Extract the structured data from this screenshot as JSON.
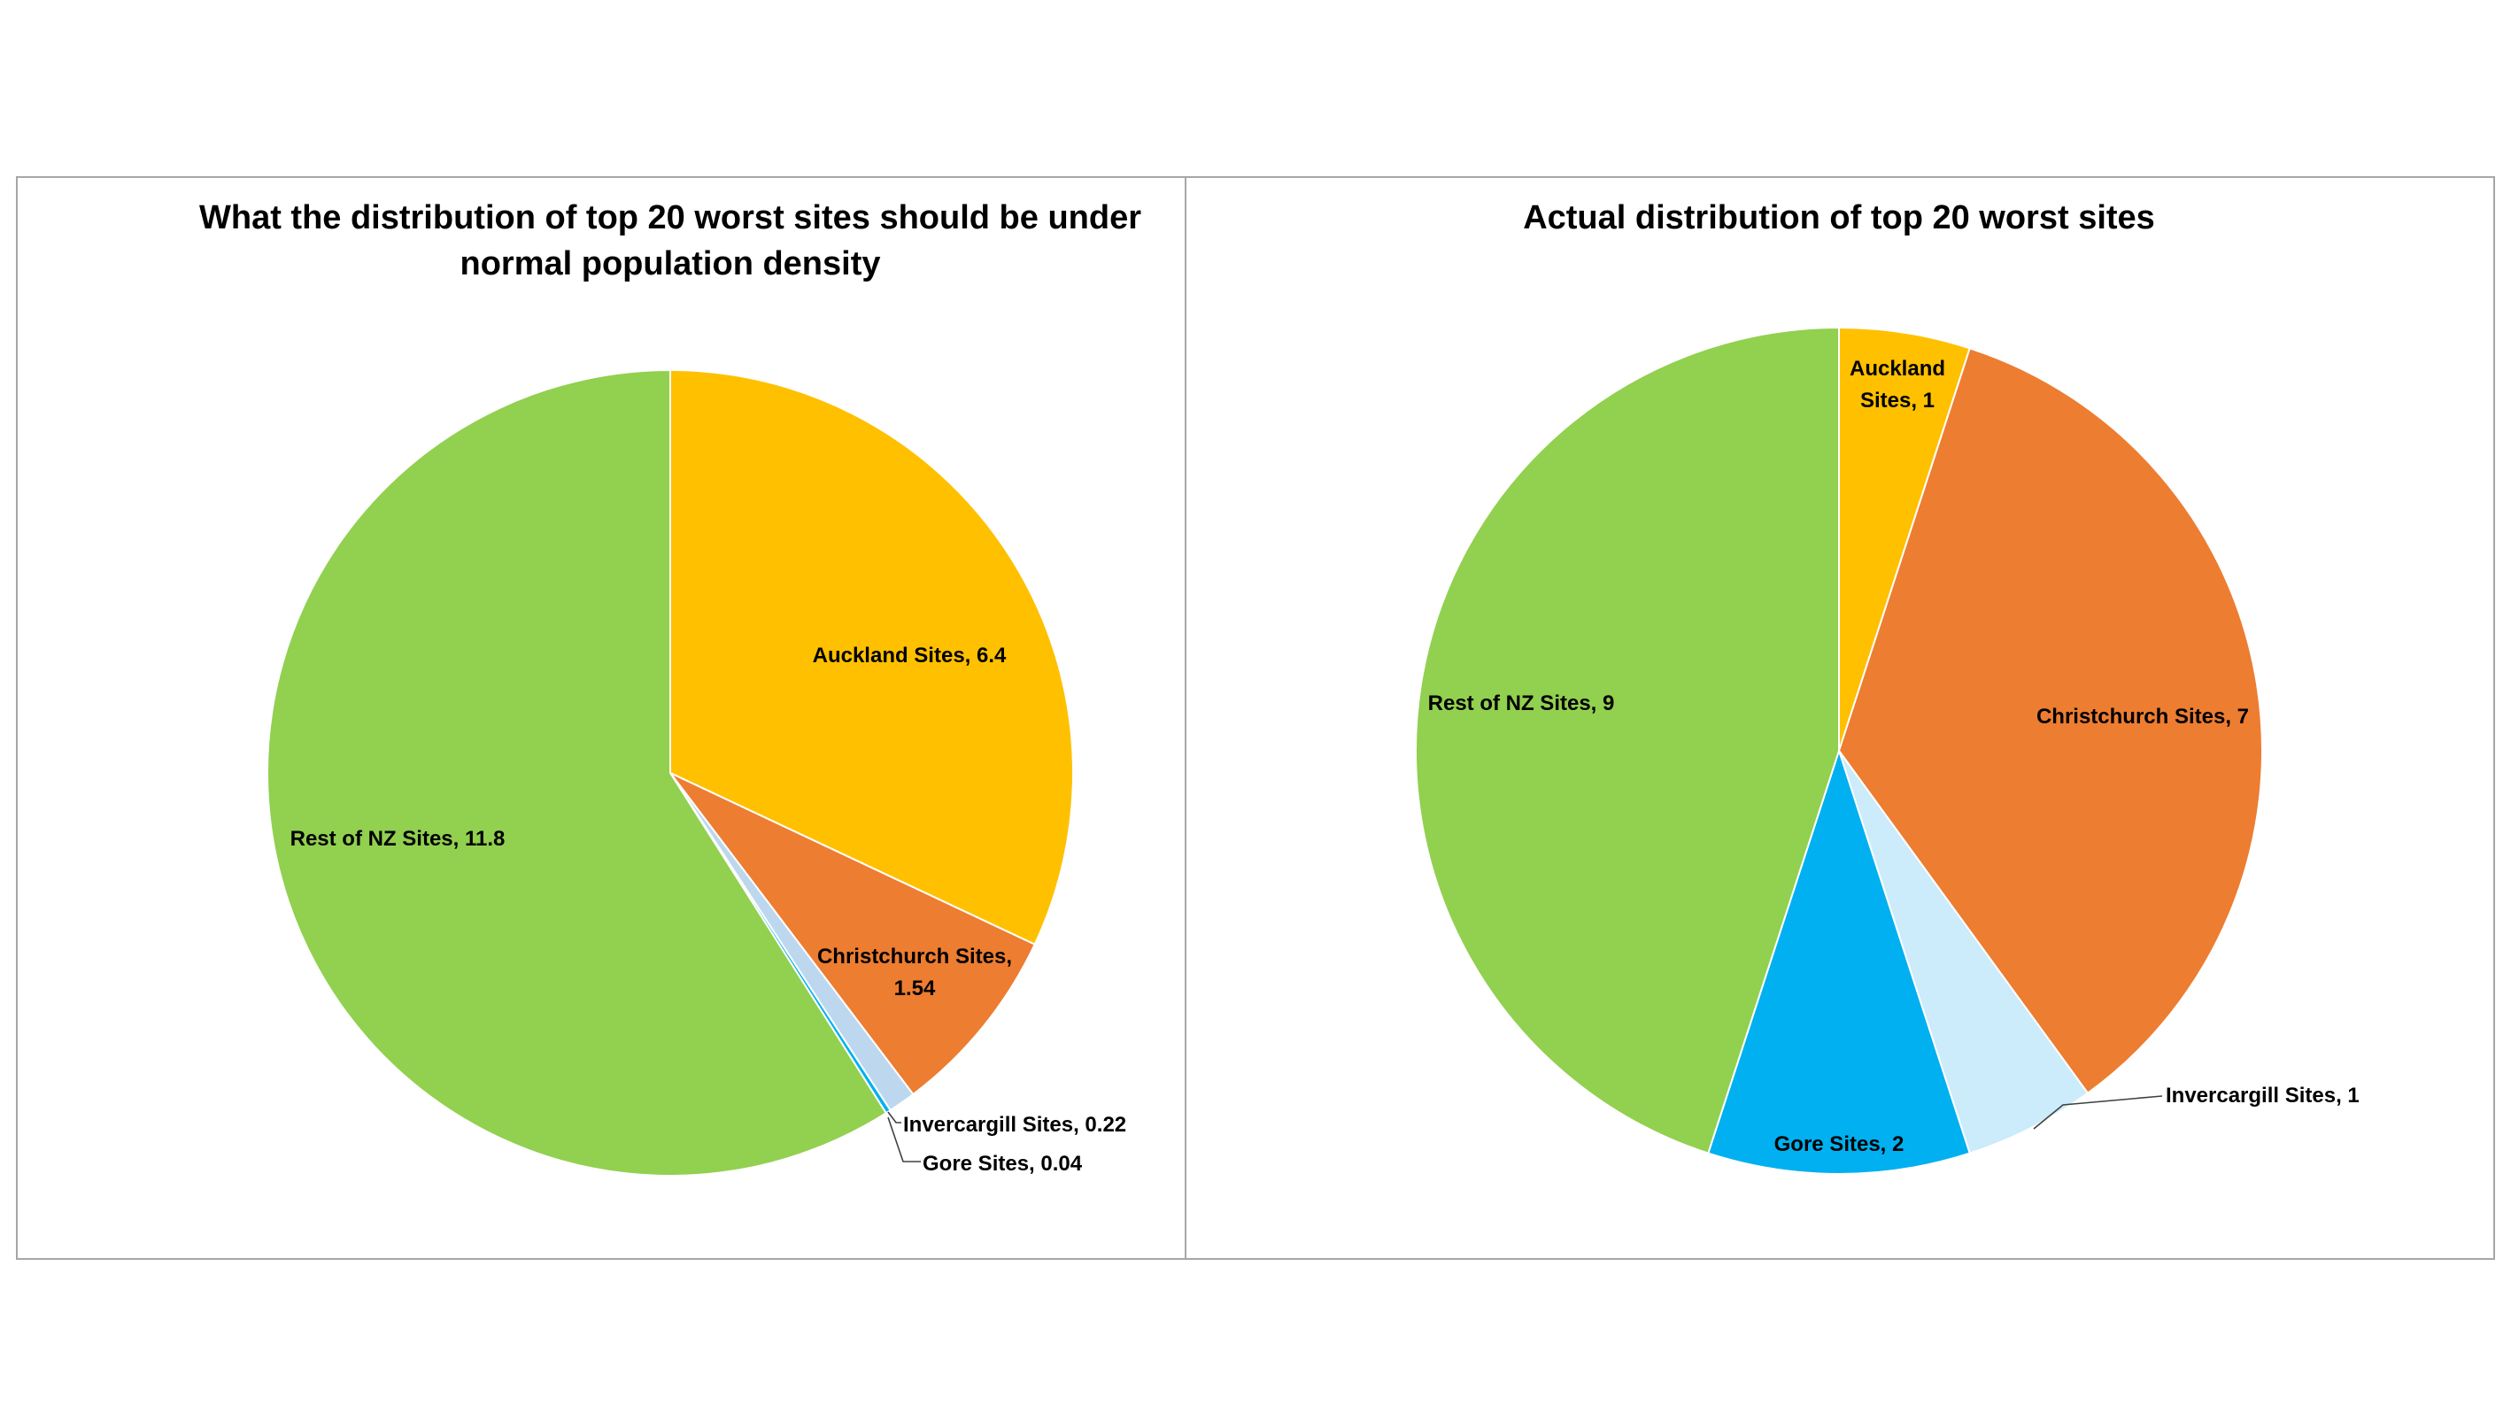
{
  "chart_data": [
    {
      "type": "pie",
      "title": "What the distribution of top 20 worst sites should be under normal population density",
      "title_lines": [
        "What the distribution of top 20 worst sites should be under",
        "normal population density"
      ],
      "start_angle_deg": 0,
      "direction": "clockwise",
      "slices": [
        {
          "name": "Auckland Sites",
          "value": 6.4,
          "color": "#FFC000",
          "label": "Auckland Sites, 6.4"
        },
        {
          "name": "Christchurch Sites",
          "value": 1.54,
          "color": "#ED7D31",
          "label": "Christchurch Sites, 1.54"
        },
        {
          "name": "Invercargill Sites",
          "value": 0.22,
          "color": "#BDD7EE",
          "label": "Invercargill Sites, 0.22"
        },
        {
          "name": "Gore Sites",
          "value": 0.04,
          "color": "#00B0F0",
          "label": "Gore Sites, 0.04"
        },
        {
          "name": "Rest of NZ Sites",
          "value": 11.8,
          "color": "#92D050",
          "label": "Rest of NZ Sites, 11.8"
        }
      ]
    },
    {
      "type": "pie",
      "title": "Actual distribution of top 20 worst sites",
      "title_lines": [
        "Actual distribution of top 20 worst sites"
      ],
      "start_angle_deg": 0,
      "direction": "clockwise",
      "slices": [
        {
          "name": "Auckland Sites",
          "value": 1,
          "color": "#FFC000",
          "label": "Auckland Sites, 1"
        },
        {
          "name": "Christchurch Sites",
          "value": 7,
          "color": "#ED7D31",
          "label": "Christchurch Sites, 7"
        },
        {
          "name": "Invercargill Sites",
          "value": 1,
          "color": "#CCEBFB",
          "label": "Invercargill Sites, 1"
        },
        {
          "name": "Gore Sites",
          "value": 2,
          "color": "#00B0F0",
          "label": "Gore Sites, 2"
        },
        {
          "name": "Rest of NZ Sites",
          "value": 9,
          "color": "#92D050",
          "label": "Rest of NZ Sites, 9"
        }
      ]
    }
  ]
}
